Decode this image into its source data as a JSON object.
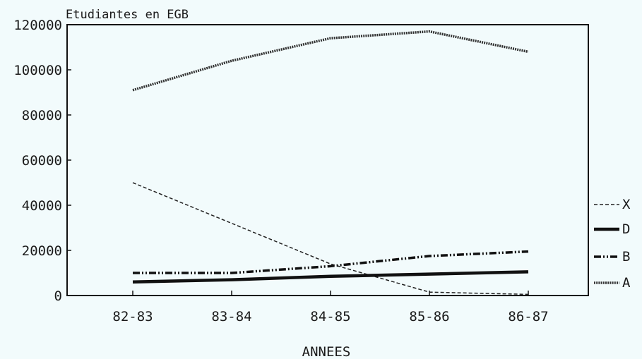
{
  "chart_data": {
    "type": "line",
    "title": "Etudiantes en EGB",
    "xlabel": "ANNEES",
    "ylabel": "",
    "categories": [
      "82-83",
      "83-84",
      "84-85",
      "85-86",
      "86-87"
    ],
    "ylim": [
      0,
      120000
    ],
    "yticks": [
      0,
      20000,
      40000,
      60000,
      80000,
      100000,
      120000
    ],
    "ytick_labels": [
      "0",
      "20000",
      "40000",
      "60000",
      "80000",
      "100000",
      "120000"
    ],
    "grid": false,
    "legend_position": "right",
    "series": [
      {
        "name": "X",
        "values": [
          50000,
          32000,
          14000,
          1500,
          500
        ],
        "color": "#222222",
        "style": "dashed"
      },
      {
        "name": "D",
        "values": [
          6000,
          7000,
          8500,
          9500,
          10500
        ],
        "color": "#111111",
        "style": "thick"
      },
      {
        "name": "B",
        "values": [
          10000,
          10000,
          13000,
          17500,
          19500
        ],
        "color": "#111111",
        "style": "dashdot"
      },
      {
        "name": "A",
        "values": [
          91000,
          104000,
          114000,
          117000,
          108000
        ],
        "color": "#333333",
        "style": "dotted"
      }
    ]
  }
}
